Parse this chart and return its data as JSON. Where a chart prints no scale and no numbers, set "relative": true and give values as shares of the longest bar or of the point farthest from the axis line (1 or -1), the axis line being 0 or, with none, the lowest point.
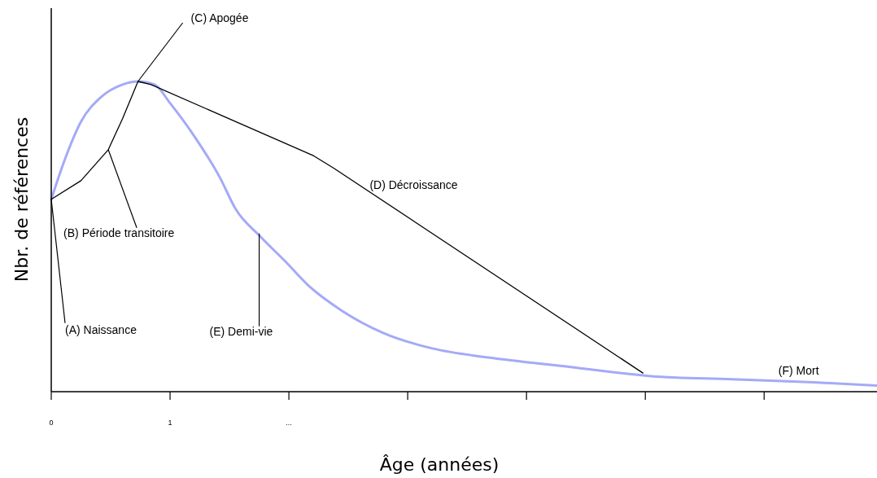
{
  "chart_data": {
    "type": "line",
    "relative": true,
    "xlabel": "Âge (années)",
    "ylabel": "Nbr. de références",
    "xlim": [
      0,
      6.95
    ],
    "xticks": [
      0,
      1,
      {
        "value": 2,
        "label": "..."
      },
      {
        "value": 3,
        "label": null
      },
      {
        "value": 4,
        "label": null
      },
      {
        "value": 5,
        "label": null
      },
      {
        "value": 6,
        "label": null
      }
    ],
    "grid": false,
    "legend": false,
    "series": [
      {
        "color": "#a4aaf7",
        "x": [
          0,
          0.116,
          0.25,
          0.42,
          0.6,
          0.73,
          0.87,
          1.0,
          1.21,
          1.42,
          1.55,
          1.76,
          1.97,
          2.17,
          2.45,
          2.79,
          3.2,
          3.68,
          4.36,
          5.05,
          5.73,
          6.42,
          6.95
        ],
        "values": [
          0.62,
          0.75,
          0.87,
          0.95,
          0.99,
          1.0,
          0.99,
          0.93,
          0.82,
          0.69,
          0.59,
          0.5,
          0.42,
          0.34,
          0.26,
          0.19,
          0.14,
          0.11,
          0.08,
          0.05,
          0.04,
          0.03,
          0.02
        ]
      },
      {
        "color": "#000000",
        "x": [
          0,
          0.25,
          0.48,
          0.6,
          0.73,
          0.84,
          2.21,
          2.38,
          4.98
        ],
        "values": [
          0.62,
          0.68,
          0.78,
          0.88,
          1.0,
          0.99,
          0.76,
          0.72,
          0.06
        ]
      }
    ],
    "annotations": [
      {
        "text": "(A) Naissance",
        "x": 0,
        "y": 0.62
      },
      {
        "text": "(B) Période transitoire",
        "x": 0.48,
        "y": 0.78
      },
      {
        "text": "(C) Apogée",
        "x": 0.73,
        "y": 1.0
      },
      {
        "text": "(D) Décroissance",
        "x": 2.68,
        "y": 0.65
      },
      {
        "text": "(E) Demi-vie",
        "x": 1.75,
        "y": 0.51
      },
      {
        "text": "(F) Mort",
        "x": 6.12,
        "y": 0.04
      }
    ]
  }
}
